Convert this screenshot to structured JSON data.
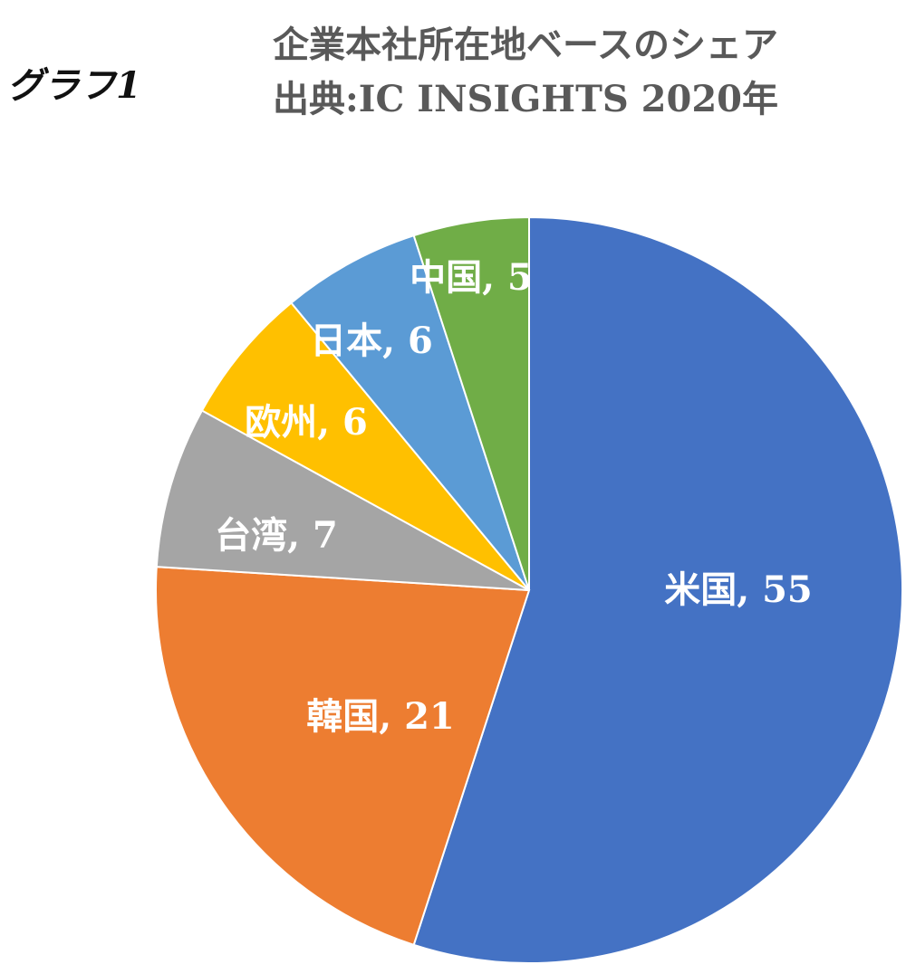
{
  "graph_label": "グラフ1",
  "chart_data": {
    "type": "pie",
    "title": "企業本社所在地ベースのシェア",
    "subtitle": "出典:IC INSIGHTS 2020年",
    "categories": [
      "米国",
      "韓国",
      "台湾",
      "欧州",
      "日本",
      "中国"
    ],
    "values": [
      55,
      21,
      7,
      6,
      6,
      5
    ],
    "labels": [
      "米国, 55",
      "韓国, 21",
      "台湾, 7",
      "欧州, 6",
      "日本, 6",
      "中国, 5"
    ],
    "colors": [
      "#4472C4",
      "#ED7D31",
      "#A5A5A5",
      "#FFC000",
      "#5B9BD5",
      "#70AD47"
    ],
    "start": "12 o'clock",
    "direction": "clockwise",
    "legend": "none",
    "data_labels": "inside"
  }
}
